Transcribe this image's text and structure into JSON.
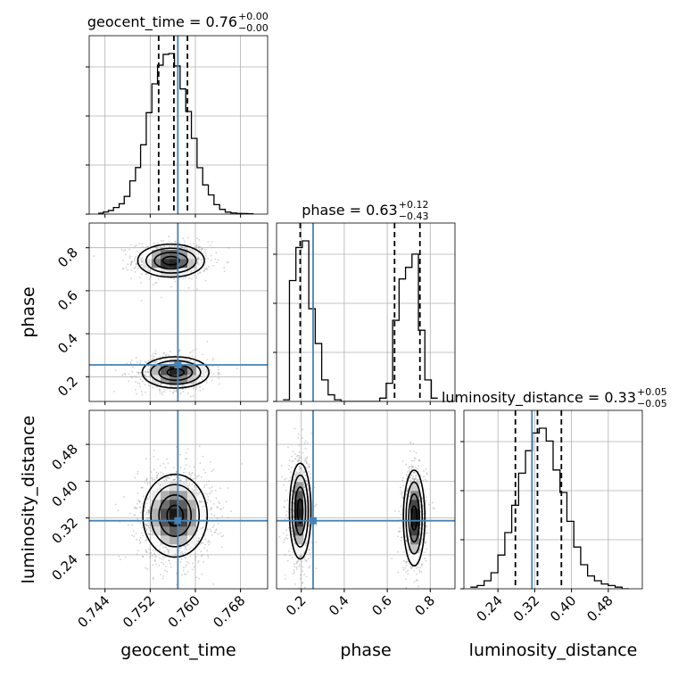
{
  "chart_data": {
    "type": "corner",
    "parameters": [
      "geocent_time",
      "phase",
      "luminosity_distance"
    ],
    "axis_labels": [
      "geocent_time",
      "phase",
      "luminosity_distance"
    ],
    "ranges": {
      "geocent_time": [
        0.7412,
        0.7728
      ],
      "phase": [
        0.085,
        0.915
      ],
      "luminosity_distance": [
        0.166,
        0.554
      ]
    },
    "ticks": {
      "geocent_time": [
        0.744,
        0.752,
        0.76,
        0.768
      ],
      "phase": [
        0.2,
        0.4,
        0.6,
        0.8
      ],
      "luminosity_distance": [
        0.24,
        0.32,
        0.4,
        0.48
      ]
    },
    "tick_labels": {
      "geocent_time": [
        "0.744",
        "0.752",
        "0.760",
        "0.768"
      ],
      "phase": [
        "0.2",
        "0.4",
        "0.6",
        "0.8"
      ],
      "luminosity_distance": [
        "0.24",
        "0.32",
        "0.40",
        "0.48"
      ]
    },
    "titles": [
      {
        "param": "geocent_time",
        "name": "geocent_time",
        "median": "0.76",
        "plus": "+0.00",
        "minus": "−0.00"
      },
      {
        "param": "phase",
        "name": "phase",
        "median": "0.63",
        "plus": "+0.12",
        "minus": "−0.43"
      },
      {
        "param": "luminosity_distance",
        "name": "luminosity_distance",
        "median": "0.33",
        "plus": "+0.05",
        "minus": "−0.05"
      }
    ],
    "truths": {
      "geocent_time": 0.7569,
      "phase": 0.255,
      "luminosity_distance": 0.314
    },
    "quantiles": {
      "geocent_time": [
        0.7535,
        0.7562,
        0.7586
      ],
      "phase": [
        0.195,
        0.634,
        0.752
      ],
      "luminosity_distance": [
        0.278,
        0.326,
        0.378
      ]
    },
    "histograms": {
      "geocent_time": {
        "bins": [
          0.7428,
          0.7437,
          0.7446,
          0.7455,
          0.7465,
          0.7474,
          0.7484,
          0.7494,
          0.7503,
          0.7513,
          0.7523,
          0.7533,
          0.7543,
          0.7553,
          0.7563,
          0.7573,
          0.7583,
          0.7593,
          0.7603,
          0.7613,
          0.7623,
          0.7633,
          0.7643,
          0.7653,
          0.7663,
          0.7673,
          0.7683,
          0.7693,
          0.7703
        ],
        "counts": [
          0.005,
          0.013,
          0.022,
          0.04,
          0.063,
          0.108,
          0.203,
          0.284,
          0.423,
          0.619,
          0.795,
          0.909,
          0.975,
          0.98,
          0.904,
          0.764,
          0.626,
          0.462,
          0.283,
          0.178,
          0.117,
          0.058,
          0.029,
          0.012,
          0.007,
          0.004,
          0.003,
          0.002
        ]
      },
      "phase": {
        "bins": [
          0.115,
          0.145,
          0.175,
          0.205,
          0.235,
          0.265,
          0.295,
          0.325,
          0.355,
          0.385,
          0.415,
          0.445,
          0.475,
          0.505,
          0.535,
          0.565,
          0.595,
          0.625,
          0.655,
          0.685,
          0.715,
          0.745,
          0.775,
          0.805,
          0.835
        ],
        "counts": [
          0.01,
          0.73,
          0.93,
          0.97,
          0.56,
          0.35,
          0.13,
          0.04,
          0.01,
          0.0,
          0.0,
          0.0,
          0.0,
          0.0,
          0.0,
          0.02,
          0.11,
          0.49,
          0.74,
          0.81,
          0.89,
          0.43,
          0.13,
          0.02
        ]
      },
      "luminosity_distance": {
        "bins": [
          0.18,
          0.195,
          0.21,
          0.225,
          0.24,
          0.255,
          0.27,
          0.285,
          0.3,
          0.315,
          0.33,
          0.345,
          0.36,
          0.375,
          0.39,
          0.405,
          0.42,
          0.435,
          0.45,
          0.465,
          0.48,
          0.495,
          0.51,
          0.525
        ],
        "counts": [
          0.01,
          0.02,
          0.05,
          0.1,
          0.21,
          0.35,
          0.52,
          0.72,
          0.86,
          0.97,
          1.0,
          0.92,
          0.74,
          0.6,
          0.42,
          0.26,
          0.15,
          0.08,
          0.05,
          0.03,
          0.02,
          0.01,
          0.0
        ]
      }
    },
    "joint_components": {
      "phase|geocent_time": [
        {
          "mx": 0.7557,
          "my": 0.74,
          "sx": 0.00295,
          "sy": 0.0385,
          "w": 0.5
        },
        {
          "mx": 0.7565,
          "my": 0.22,
          "sx": 0.00295,
          "sy": 0.0365,
          "w": 0.5
        }
      ],
      "luminosity_distance|geocent_time": [
        {
          "mx": 0.7564,
          "my": 0.325,
          "sx": 0.00285,
          "sy": 0.045,
          "w": 1.0
        }
      ],
      "luminosity_distance|phase": [
        {
          "mx": 0.195,
          "my": 0.335,
          "sx": 0.025,
          "sy": 0.052,
          "w": 0.5
        },
        {
          "mx": 0.725,
          "my": 0.32,
          "sx": 0.025,
          "sy": 0.052,
          "w": 0.5
        }
      ]
    },
    "colors": {
      "truth": "#4682b4",
      "hist": "#000000",
      "scatter": "#9a9a9a",
      "grid": "#b0b0b0"
    }
  }
}
